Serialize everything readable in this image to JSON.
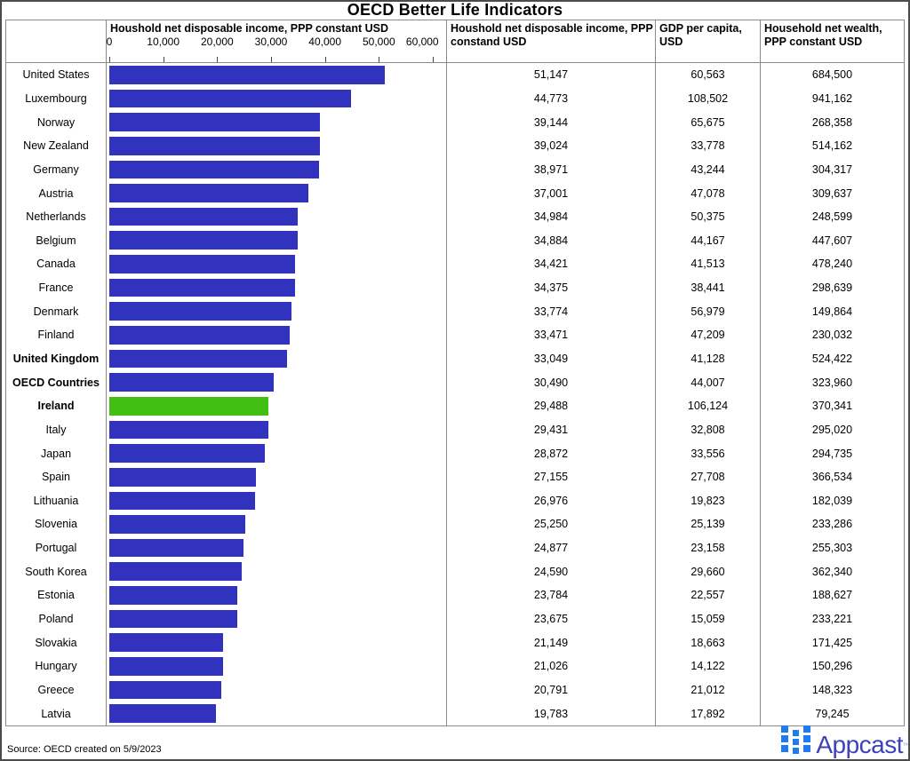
{
  "title": "OECD Better Life Indicators",
  "source_note": "Source: OECD created on 5/9/2023",
  "logo": {
    "wordmark": "Appcast",
    "trademark": "TM",
    "icon": "appcast-grid-icon"
  },
  "colors": {
    "bar_blue": "#3133BE",
    "bar_green_highlight": "#41C013",
    "logo_icon_blue": "#1F7BF3",
    "logo_text_blue": "#3E41BB",
    "table_border": "#8a8a8a"
  },
  "headers": {
    "country_col": "",
    "chart_col": "Houshold net disposable income, PPP constant USD",
    "income_col": "Houshold net disposable income, PPP constand USD",
    "gdp_col": "GDP per capita, USD",
    "wealth_col": "Household net wealth, PPP constant USD"
  },
  "chart_data": {
    "type": "bar",
    "orientation": "horizontal",
    "title": "Houshold net disposable income, PPP constant USD",
    "xlim": [
      0,
      60000
    ],
    "x_ticks": [
      0,
      10000,
      20000,
      30000,
      40000,
      50000,
      60000
    ],
    "x_tick_labels": [
      "0",
      "10,000",
      "20,000",
      "30,000",
      "40,000",
      "50,000",
      "60,000"
    ],
    "grid": false,
    "highlight_country": "Ireland",
    "bold_rows": [
      "United Kingdom",
      "OECD Countries",
      "Ireland"
    ],
    "rows": [
      {
        "country": "United States",
        "income": 51147,
        "income_label": "51,147",
        "gdp_label": "60,563",
        "wealth_label": "684,500",
        "bold": false,
        "highlight": false
      },
      {
        "country": "Luxembourg",
        "income": 44773,
        "income_label": "44,773",
        "gdp_label": "108,502",
        "wealth_label": "941,162",
        "bold": false,
        "highlight": false
      },
      {
        "country": "Norway",
        "income": 39144,
        "income_label": "39,144",
        "gdp_label": "65,675",
        "wealth_label": "268,358",
        "bold": false,
        "highlight": false
      },
      {
        "country": "New Zealand",
        "income": 39024,
        "income_label": "39,024",
        "gdp_label": "33,778",
        "wealth_label": "514,162",
        "bold": false,
        "highlight": false
      },
      {
        "country": "Germany",
        "income": 38971,
        "income_label": "38,971",
        "gdp_label": "43,244",
        "wealth_label": "304,317",
        "bold": false,
        "highlight": false
      },
      {
        "country": "Austria",
        "income": 37001,
        "income_label": "37,001",
        "gdp_label": "47,078",
        "wealth_label": "309,637",
        "bold": false,
        "highlight": false
      },
      {
        "country": "Netherlands",
        "income": 34984,
        "income_label": "34,984",
        "gdp_label": "50,375",
        "wealth_label": "248,599",
        "bold": false,
        "highlight": false
      },
      {
        "country": "Belgium",
        "income": 34884,
        "income_label": "34,884",
        "gdp_label": "44,167",
        "wealth_label": "447,607",
        "bold": false,
        "highlight": false
      },
      {
        "country": "Canada",
        "income": 34421,
        "income_label": "34,421",
        "gdp_label": "41,513",
        "wealth_label": "478,240",
        "bold": false,
        "highlight": false
      },
      {
        "country": "France",
        "income": 34375,
        "income_label": "34,375",
        "gdp_label": "38,441",
        "wealth_label": "298,639",
        "bold": false,
        "highlight": false
      },
      {
        "country": "Denmark",
        "income": 33774,
        "income_label": "33,774",
        "gdp_label": "56,979",
        "wealth_label": "149,864",
        "bold": false,
        "highlight": false
      },
      {
        "country": "Finland",
        "income": 33471,
        "income_label": "33,471",
        "gdp_label": "47,209",
        "wealth_label": "230,032",
        "bold": false,
        "highlight": false
      },
      {
        "country": "United Kingdom",
        "income": 33049,
        "income_label": "33,049",
        "gdp_label": "41,128",
        "wealth_label": "524,422",
        "bold": true,
        "highlight": false
      },
      {
        "country": "OECD Countries",
        "income": 30490,
        "income_label": "30,490",
        "gdp_label": "44,007",
        "wealth_label": "323,960",
        "bold": true,
        "highlight": false
      },
      {
        "country": "Ireland",
        "income": 29488,
        "income_label": "29,488",
        "gdp_label": "106,124",
        "wealth_label": "370,341",
        "bold": true,
        "highlight": true
      },
      {
        "country": "Italy",
        "income": 29431,
        "income_label": "29,431",
        "gdp_label": "32,808",
        "wealth_label": "295,020",
        "bold": false,
        "highlight": false
      },
      {
        "country": "Japan",
        "income": 28872,
        "income_label": "28,872",
        "gdp_label": "33,556",
        "wealth_label": "294,735",
        "bold": false,
        "highlight": false
      },
      {
        "country": "Spain",
        "income": 27155,
        "income_label": "27,155",
        "gdp_label": "27,708",
        "wealth_label": "366,534",
        "bold": false,
        "highlight": false
      },
      {
        "country": "Lithuania",
        "income": 26976,
        "income_label": "26,976",
        "gdp_label": "19,823",
        "wealth_label": "182,039",
        "bold": false,
        "highlight": false
      },
      {
        "country": "Slovenia",
        "income": 25250,
        "income_label": "25,250",
        "gdp_label": "25,139",
        "wealth_label": "233,286",
        "bold": false,
        "highlight": false
      },
      {
        "country": "Portugal",
        "income": 24877,
        "income_label": "24,877",
        "gdp_label": "23,158",
        "wealth_label": "255,303",
        "bold": false,
        "highlight": false
      },
      {
        "country": "South Korea",
        "income": 24590,
        "income_label": "24,590",
        "gdp_label": "29,660",
        "wealth_label": "362,340",
        "bold": false,
        "highlight": false
      },
      {
        "country": "Estonia",
        "income": 23784,
        "income_label": "23,784",
        "gdp_label": "22,557",
        "wealth_label": "188,627",
        "bold": false,
        "highlight": false
      },
      {
        "country": "Poland",
        "income": 23675,
        "income_label": "23,675",
        "gdp_label": "15,059",
        "wealth_label": "233,221",
        "bold": false,
        "highlight": false
      },
      {
        "country": "Slovakia",
        "income": 21149,
        "income_label": "21,149",
        "gdp_label": "18,663",
        "wealth_label": "171,425",
        "bold": false,
        "highlight": false
      },
      {
        "country": "Hungary",
        "income": 21026,
        "income_label": "21,026",
        "gdp_label": "14,122",
        "wealth_label": "150,296",
        "bold": false,
        "highlight": false
      },
      {
        "country": "Greece",
        "income": 20791,
        "income_label": "20,791",
        "gdp_label": "21,012",
        "wealth_label": "148,323",
        "bold": false,
        "highlight": false
      },
      {
        "country": "Latvia",
        "income": 19783,
        "income_label": "19,783",
        "gdp_label": "17,892",
        "wealth_label": "79,245",
        "bold": false,
        "highlight": false
      }
    ]
  }
}
